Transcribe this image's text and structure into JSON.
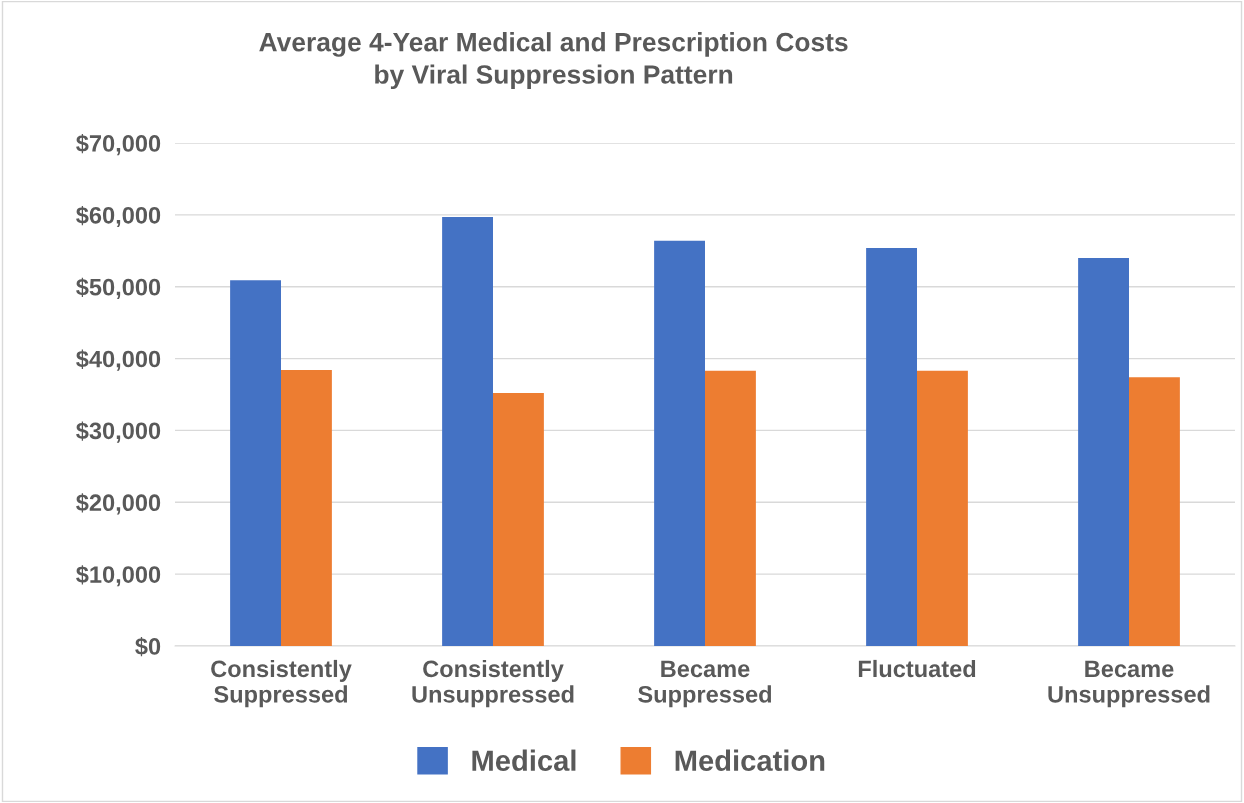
{
  "chart_data": {
    "type": "bar",
    "title": "Average 4-Year Medical and Prescription Costs\nby Viral Suppression Pattern",
    "categories": [
      "Consistently\nSuppressed",
      "Consistently\nUnsuppressed",
      "Became\nSuppressed",
      "Fluctuated",
      "Became\nUnsuppressed"
    ],
    "series": [
      {
        "name": "Medical",
        "color": "#4472c4",
        "values": [
          50900,
          59700,
          56400,
          55400,
          54000
        ]
      },
      {
        "name": "Medication",
        "color": "#ed7d31",
        "values": [
          38400,
          35200,
          38300,
          38300,
          37400
        ]
      }
    ],
    "ylim": [
      0,
      70000
    ],
    "yticks": [
      {
        "value": 0,
        "label": "$0"
      },
      {
        "value": 10000,
        "label": "$10,000"
      },
      {
        "value": 20000,
        "label": "$20,000"
      },
      {
        "value": 30000,
        "label": "$30,000"
      },
      {
        "value": 40000,
        "label": "$40,000"
      },
      {
        "value": 50000,
        "label": "$50,000"
      },
      {
        "value": 60000,
        "label": "$60,000"
      },
      {
        "value": 70000,
        "label": "$70,000"
      }
    ],
    "grid": "y",
    "legend": "bottom"
  }
}
